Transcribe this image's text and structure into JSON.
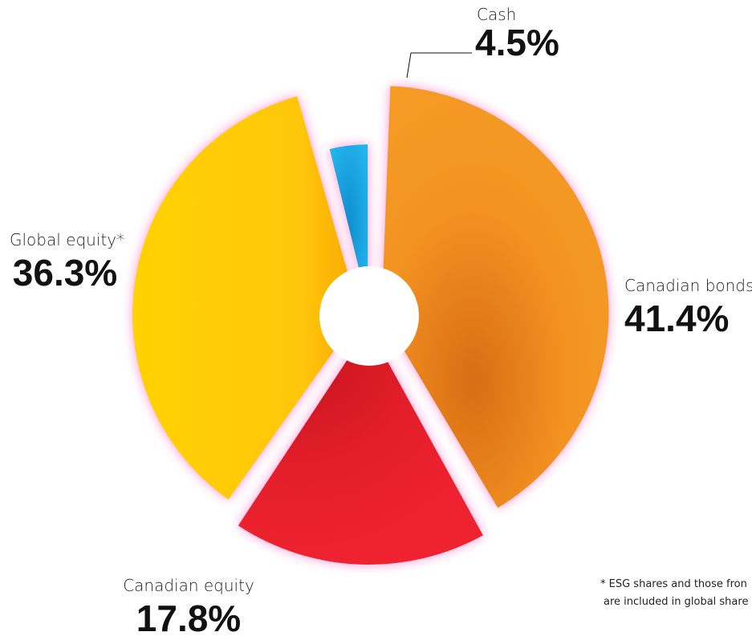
{
  "chart_data": {
    "type": "pie",
    "title": "",
    "categories": [
      "Cash",
      "Canadian bonds",
      "Canadian equity",
      "Global equity*"
    ],
    "values": [
      4.5,
      41.4,
      17.8,
      36.3
    ],
    "value_labels": [
      "4.5%",
      "41.4%",
      "17.8%",
      "36.3%"
    ],
    "donut": true,
    "legend": "none",
    "colors": [
      "#1aa6e2",
      "#f39321",
      "#e31e2a",
      "#ffc60b"
    ]
  },
  "footnote": {
    "line1": "* ESG shares and those fron",
    "line2": "are included in global share"
  }
}
